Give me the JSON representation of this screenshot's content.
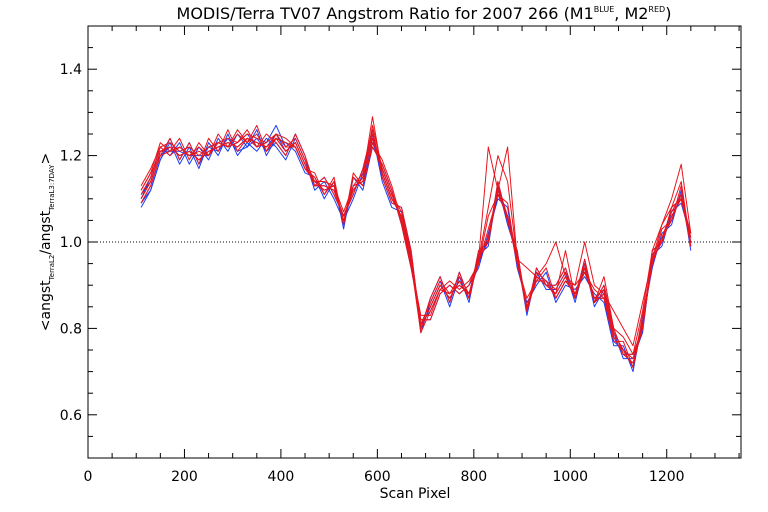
{
  "chart_data": {
    "type": "line",
    "title": {
      "main": "MODIS/Terra TV07 Angstrom Ratio for 2007 266 (M1",
      "sup1": "BLUE",
      "mid": ", M2",
      "sup2": "RED",
      "end": ")"
    },
    "xlabel": "Scan Pixel",
    "ylabel": {
      "open": "<angst",
      "sub1": "TerraL2",
      "mid": "/angst",
      "sub2": "TerraL3:7DAY",
      "close": ">"
    },
    "xlim": [
      0,
      1354
    ],
    "ylim": [
      0.5,
      1.5
    ],
    "x_ticks": [
      {
        "value": 0,
        "label": "0"
      },
      {
        "value": 200,
        "label": "200"
      },
      {
        "value": 400,
        "label": "400"
      },
      {
        "value": 600,
        "label": "600"
      },
      {
        "value": 800,
        "label": "800"
      },
      {
        "value": 1000,
        "label": "1000"
      },
      {
        "value": 1200,
        "label": "1200"
      }
    ],
    "y_ticks": [
      {
        "value": 0.6,
        "label": "0.6"
      },
      {
        "value": 0.8,
        "label": "0.8"
      },
      {
        "value": 1.0,
        "label": "1.0"
      },
      {
        "value": 1.2,
        "label": "1.2"
      },
      {
        "value": 1.4,
        "label": "1.4"
      }
    ],
    "reference_line": {
      "y": 1.0,
      "style": "dotted"
    },
    "colors": {
      "blue_series": "#1a3ef5",
      "red_series": "#e8141c",
      "ref_line": "#000000"
    },
    "x": [
      110,
      130,
      150,
      170,
      190,
      210,
      230,
      250,
      270,
      290,
      310,
      330,
      350,
      370,
      390,
      410,
      430,
      450,
      470,
      490,
      510,
      530,
      550,
      570,
      590,
      610,
      630,
      650,
      670,
      690,
      710,
      730,
      750,
      770,
      790,
      810,
      830,
      850,
      870,
      890,
      910,
      930,
      950,
      970,
      990,
      1010,
      1030,
      1050,
      1070,
      1090,
      1110,
      1130,
      1150,
      1170,
      1190,
      1210,
      1230,
      1250
    ],
    "series": [
      {
        "color": "blue",
        "values": [
          1.09,
          1.13,
          1.2,
          1.22,
          1.2,
          1.21,
          1.19,
          1.21,
          1.22,
          1.23,
          1.22,
          1.24,
          1.23,
          1.22,
          1.25,
          1.21,
          1.23,
          1.18,
          1.13,
          1.13,
          1.12,
          1.06,
          1.12,
          1.15,
          1.24,
          1.16,
          1.1,
          1.06,
          0.96,
          0.8,
          0.85,
          0.9,
          0.87,
          0.91,
          0.87,
          0.96,
          1.0,
          1.12,
          1.05,
          0.96,
          0.84,
          0.92,
          0.9,
          0.88,
          0.92,
          0.87,
          0.94,
          0.86,
          0.88,
          0.78,
          0.74,
          0.72,
          0.8,
          0.96,
          1.0,
          1.06,
          1.1,
          1.0
        ]
      },
      {
        "color": "blue",
        "values": [
          1.1,
          1.15,
          1.22,
          1.2,
          1.23,
          1.18,
          1.22,
          1.19,
          1.24,
          1.21,
          1.25,
          1.22,
          1.26,
          1.2,
          1.24,
          1.23,
          1.21,
          1.16,
          1.15,
          1.1,
          1.14,
          1.03,
          1.15,
          1.12,
          1.22,
          1.18,
          1.12,
          1.04,
          0.94,
          0.82,
          0.82,
          0.88,
          0.9,
          0.88,
          0.9,
          0.94,
          1.02,
          1.1,
          1.08,
          0.94,
          0.86,
          0.9,
          0.93,
          0.86,
          0.9,
          0.89,
          0.92,
          0.88,
          0.86,
          0.76,
          0.76,
          0.7,
          0.82,
          0.94,
          1.02,
          1.04,
          1.12,
          0.98
        ]
      },
      {
        "color": "blue",
        "values": [
          1.08,
          1.12,
          1.19,
          1.23,
          1.18,
          1.22,
          1.17,
          1.23,
          1.2,
          1.25,
          1.2,
          1.23,
          1.21,
          1.24,
          1.22,
          1.19,
          1.24,
          1.19,
          1.12,
          1.14,
          1.1,
          1.05,
          1.1,
          1.16,
          1.25,
          1.14,
          1.08,
          1.07,
          0.97,
          0.79,
          0.86,
          0.91,
          0.85,
          0.92,
          0.86,
          0.97,
          0.99,
          1.13,
          1.04,
          0.97,
          0.83,
          0.93,
          0.89,
          0.89,
          0.93,
          0.86,
          0.95,
          0.85,
          0.89,
          0.79,
          0.73,
          0.73,
          0.79,
          0.97,
          0.99,
          1.07,
          1.09,
          1.01
        ]
      },
      {
        "color": "blue",
        "values": [
          1.11,
          1.14,
          1.21,
          1.21,
          1.21,
          1.2,
          1.2,
          1.2,
          1.23,
          1.22,
          1.23,
          1.25,
          1.22,
          1.23,
          1.27,
          1.22,
          1.22,
          1.17,
          1.14,
          1.12,
          1.13,
          1.04,
          1.13,
          1.14,
          1.23,
          1.17,
          1.11,
          1.05,
          0.95,
          0.81,
          0.84,
          0.89,
          0.88,
          0.9,
          0.88,
          0.95,
          1.01,
          1.11,
          1.06,
          0.95,
          0.85,
          0.91,
          0.91,
          0.87,
          0.91,
          0.88,
          0.93,
          0.87,
          0.87,
          0.77,
          0.75,
          0.71,
          0.81,
          0.95,
          1.01,
          1.05,
          1.11,
          0.99
        ]
      },
      {
        "color": "blue",
        "values": [
          1.09,
          1.12,
          1.19,
          1.24,
          1.19,
          1.23,
          1.18,
          1.22,
          1.21,
          1.24,
          1.21,
          1.22,
          1.24,
          1.21,
          1.23,
          1.2,
          1.25,
          1.2,
          1.13,
          1.15,
          1.11,
          1.06,
          1.11,
          1.17,
          1.26,
          1.15,
          1.09,
          1.08,
          0.98,
          0.8,
          0.87,
          0.92,
          0.86,
          0.93,
          0.87,
          0.98,
          1.0,
          1.14,
          1.05,
          0.98,
          0.84,
          0.94,
          0.9,
          0.9,
          0.94,
          0.87,
          0.96,
          0.86,
          0.9,
          0.8,
          0.74,
          0.74,
          0.8,
          0.98,
          1.0,
          1.08,
          1.1,
          1.02
        ]
      },
      {
        "color": "red",
        "values": [
          1.1,
          1.14,
          1.21,
          1.22,
          1.2,
          1.21,
          1.19,
          1.21,
          1.22,
          1.23,
          1.22,
          1.24,
          1.23,
          1.22,
          1.24,
          1.21,
          1.23,
          1.18,
          1.13,
          1.13,
          1.12,
          1.06,
          1.12,
          1.15,
          1.24,
          1.16,
          1.1,
          1.06,
          0.96,
          0.8,
          0.85,
          0.9,
          0.87,
          0.91,
          0.87,
          0.96,
          1.0,
          1.12,
          1.05,
          0.96,
          0.84,
          0.92,
          0.9,
          0.88,
          0.92,
          0.87,
          0.94,
          0.86,
          0.88,
          0.78,
          0.74,
          0.72,
          0.8,
          0.96,
          1.0,
          1.06,
          1.1,
          1.0
        ]
      },
      {
        "color": "red",
        "values": [
          1.12,
          1.16,
          1.23,
          1.21,
          1.24,
          1.19,
          1.23,
          1.2,
          1.25,
          1.22,
          1.26,
          1.23,
          1.27,
          1.21,
          1.25,
          1.24,
          1.22,
          1.17,
          1.16,
          1.11,
          1.15,
          1.04,
          1.16,
          1.13,
          1.23,
          1.19,
          1.13,
          1.05,
          0.95,
          0.83,
          0.83,
          0.89,
          0.91,
          0.89,
          0.91,
          0.95,
          1.03,
          1.11,
          1.09,
          0.95,
          0.87,
          0.91,
          0.94,
          0.87,
          0.91,
          0.9,
          0.93,
          0.89,
          0.87,
          0.77,
          0.77,
          0.71,
          0.83,
          0.95,
          1.03,
          1.05,
          1.13,
          0.99
        ]
      },
      {
        "color": "red",
        "values": [
          1.09,
          1.13,
          1.2,
          1.24,
          1.19,
          1.23,
          1.18,
          1.24,
          1.21,
          1.26,
          1.21,
          1.24,
          1.22,
          1.25,
          1.23,
          1.2,
          1.25,
          1.2,
          1.13,
          1.15,
          1.11,
          1.06,
          1.11,
          1.17,
          1.26,
          1.15,
          1.09,
          1.08,
          0.98,
          0.8,
          0.87,
          0.92,
          0.86,
          0.93,
          0.87,
          0.98,
          1.0,
          1.14,
          1.05,
          0.98,
          0.84,
          0.94,
          0.9,
          0.9,
          0.94,
          0.87,
          0.96,
          0.86,
          0.9,
          0.8,
          0.74,
          0.74,
          0.8,
          0.98,
          1.0,
          1.08,
          1.1,
          1.02
        ]
      },
      {
        "color": "red",
        "values": [
          1.11,
          1.15,
          1.22,
          1.2,
          1.22,
          1.2,
          1.21,
          1.2,
          1.23,
          1.22,
          1.23,
          1.26,
          1.22,
          1.23,
          1.25,
          1.22,
          1.22,
          1.17,
          1.14,
          1.12,
          1.13,
          1.05,
          1.13,
          1.14,
          1.27,
          1.17,
          1.11,
          1.05,
          0.95,
          0.79,
          0.84,
          0.89,
          0.88,
          0.9,
          0.88,
          0.95,
          1.06,
          1.11,
          1.06,
          0.95,
          0.85,
          0.91,
          0.91,
          0.87,
          0.91,
          0.88,
          0.93,
          0.87,
          0.87,
          0.79,
          0.75,
          0.71,
          0.81,
          0.95,
          1.01,
          1.05,
          1.11,
          0.99
        ]
      },
      {
        "color": "red",
        "values": [
          1.13,
          1.17,
          1.22,
          1.23,
          1.21,
          1.22,
          1.2,
          1.22,
          1.23,
          1.24,
          1.23,
          1.25,
          1.24,
          1.23,
          1.25,
          1.22,
          1.24,
          1.19,
          1.14,
          1.14,
          1.13,
          1.07,
          1.13,
          1.16,
          1.25,
          1.17,
          1.11,
          1.07,
          0.97,
          0.81,
          0.86,
          0.91,
          0.88,
          0.92,
          0.88,
          0.97,
          1.01,
          1.13,
          1.06,
          0.97,
          0.85,
          0.93,
          0.91,
          0.89,
          0.93,
          0.88,
          0.95,
          0.87,
          0.89,
          0.79,
          0.75,
          0.73,
          0.81,
          0.97,
          1.01,
          1.07,
          1.11,
          1.01
        ]
      },
      {
        "color": "red",
        "values": [
          1.1,
          1.14,
          1.21,
          1.22,
          1.2,
          1.21,
          1.19,
          1.21,
          1.22,
          1.23,
          1.22,
          1.24,
          1.23,
          1.22,
          1.24,
          1.21,
          1.23,
          1.18,
          1.13,
          1.13,
          1.12,
          1.06,
          1.12,
          1.15,
          1.29,
          1.16,
          1.1,
          1.06,
          0.96,
          0.8,
          0.85,
          0.9,
          0.87,
          0.91,
          0.87,
          0.96,
          1.22,
          1.12,
          1.22,
          0.96,
          0.84,
          0.92,
          0.9,
          0.88,
          0.98,
          0.87,
          0.94,
          0.86,
          0.92,
          0.8,
          0.78,
          0.74,
          0.84,
          0.98,
          1.04,
          1.1,
          1.18,
          1.02
        ]
      },
      {
        "color": "red",
        "values": [
          1.12,
          1.16,
          1.2,
          1.21,
          1.22,
          1.2,
          1.22,
          1.2,
          1.23,
          1.22,
          1.25,
          1.23,
          1.25,
          1.21,
          1.24,
          1.23,
          1.22,
          1.17,
          1.15,
          1.11,
          1.14,
          1.04,
          1.15,
          1.13,
          1.22,
          1.18,
          1.12,
          1.04,
          0.94,
          0.82,
          0.82,
          0.88,
          0.9,
          0.88,
          0.9,
          0.96,
          1.08,
          1.2,
          1.14,
          0.96,
          0.94,
          0.92,
          0.95,
          1.0,
          0.92,
          0.9,
          1.0,
          0.9,
          0.88,
          0.84,
          0.8,
          0.76,
          0.86,
          0.96,
          1.04,
          1.08,
          1.14,
          0.99
        ]
      }
    ]
  }
}
